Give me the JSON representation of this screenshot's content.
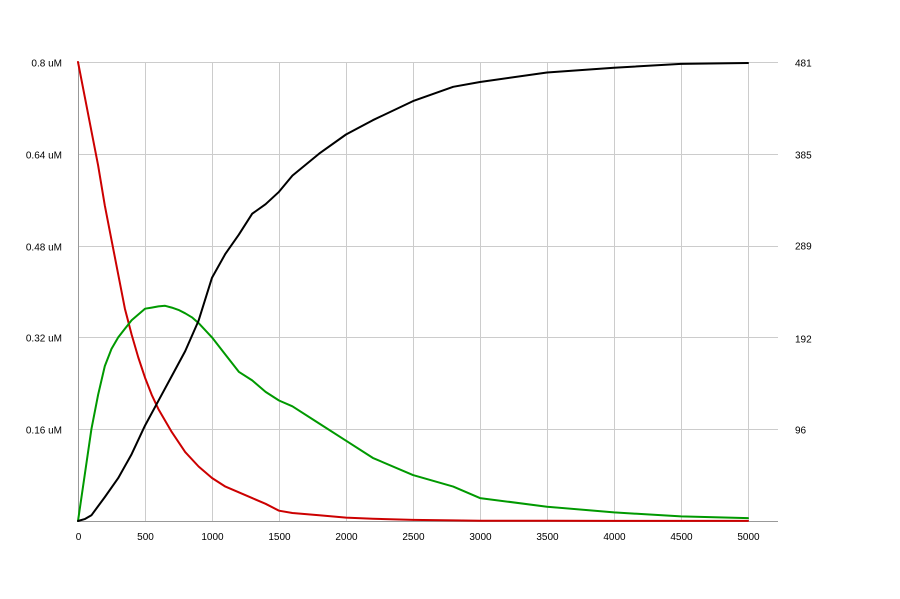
{
  "chart_data": {
    "type": "line",
    "title": "",
    "xlabel": "",
    "ylabel": "",
    "xlim": [
      0,
      5000
    ],
    "ylim": [
      0,
      0.8
    ],
    "y2lim": [
      0,
      481
    ],
    "grid": true,
    "x_ticks": [
      {
        "value": 0,
        "label": "0"
      },
      {
        "value": 500,
        "label": "500"
      },
      {
        "value": 1000,
        "label": "1000"
      },
      {
        "value": 1500,
        "label": "1500"
      },
      {
        "value": 2000,
        "label": "2000"
      },
      {
        "value": 2500,
        "label": "2500"
      },
      {
        "value": 3000,
        "label": "3000"
      },
      {
        "value": 3500,
        "label": "3500"
      },
      {
        "value": 4000,
        "label": "4000"
      },
      {
        "value": 4500,
        "label": "4500"
      },
      {
        "value": 5000,
        "label": "5000"
      }
    ],
    "y_ticks_left": [
      {
        "value": 0.16,
        "label": "0.16 uM"
      },
      {
        "value": 0.32,
        "label": "0.32 uM"
      },
      {
        "value": 0.48,
        "label": "0.48 uM"
      },
      {
        "value": 0.64,
        "label": "0.64 uM"
      },
      {
        "value": 0.8,
        "label": "0.8 uM"
      }
    ],
    "y_ticks_right": [
      {
        "value": 96,
        "label": "96"
      },
      {
        "value": 192,
        "label": "192"
      },
      {
        "value": 289,
        "label": "289"
      },
      {
        "value": 385,
        "label": "385"
      },
      {
        "value": 481,
        "label": "481"
      }
    ],
    "series": [
      {
        "color": "#cc0000",
        "axis": "left",
        "x": [
          0,
          50,
          100,
          150,
          200,
          250,
          300,
          350,
          400,
          450,
          500,
          550,
          600,
          700,
          800,
          900,
          1000,
          1100,
          1200,
          1300,
          1400,
          1500,
          1600,
          1800,
          2000,
          2200,
          2500,
          2800,
          3000,
          3500,
          4000,
          4500,
          5000
        ],
        "y": [
          0.8,
          0.74,
          0.68,
          0.62,
          0.55,
          0.49,
          0.43,
          0.37,
          0.325,
          0.285,
          0.25,
          0.22,
          0.195,
          0.155,
          0.12,
          0.095,
          0.075,
          0.06,
          0.05,
          0.04,
          0.03,
          0.018,
          0.014,
          0.01,
          0.006,
          0.004,
          0.002,
          0.001,
          0.0006,
          0.0003,
          0.0002,
          0.0001,
          0.0001
        ]
      },
      {
        "color": "#009900",
        "axis": "left",
        "x": [
          0,
          50,
          100,
          150,
          200,
          250,
          300,
          350,
          400,
          450,
          500,
          550,
          600,
          650,
          700,
          750,
          800,
          850,
          900,
          1000,
          1100,
          1200,
          1300,
          1400,
          1500,
          1600,
          1800,
          2000,
          2200,
          2500,
          2800,
          3000,
          3500,
          4000,
          4500,
          5000
        ],
        "y": [
          0,
          0.08,
          0.16,
          0.22,
          0.27,
          0.3,
          0.32,
          0.335,
          0.35,
          0.36,
          0.37,
          0.372,
          0.374,
          0.375,
          0.372,
          0.368,
          0.362,
          0.355,
          0.345,
          0.32,
          0.29,
          0.26,
          0.245,
          0.225,
          0.21,
          0.2,
          0.17,
          0.14,
          0.11,
          0.08,
          0.06,
          0.04,
          0.025,
          0.015,
          0.008,
          0.005
        ]
      },
      {
        "color": "#000000",
        "axis": "right",
        "x": [
          0,
          50,
          100,
          200,
          300,
          400,
          500,
          600,
          700,
          800,
          900,
          1000,
          1100,
          1200,
          1300,
          1400,
          1500,
          1600,
          1800,
          2000,
          2200,
          2500,
          2800,
          3000,
          3500,
          4000,
          4500,
          5000
        ],
        "y": [
          0,
          2,
          6,
          25,
          45,
          70,
          100,
          126,
          152,
          178,
          210,
          255,
          280,
          300,
          322,
          332,
          345,
          362,
          385,
          405,
          420,
          440,
          455,
          460,
          470,
          475,
          479,
          480
        ]
      }
    ]
  }
}
